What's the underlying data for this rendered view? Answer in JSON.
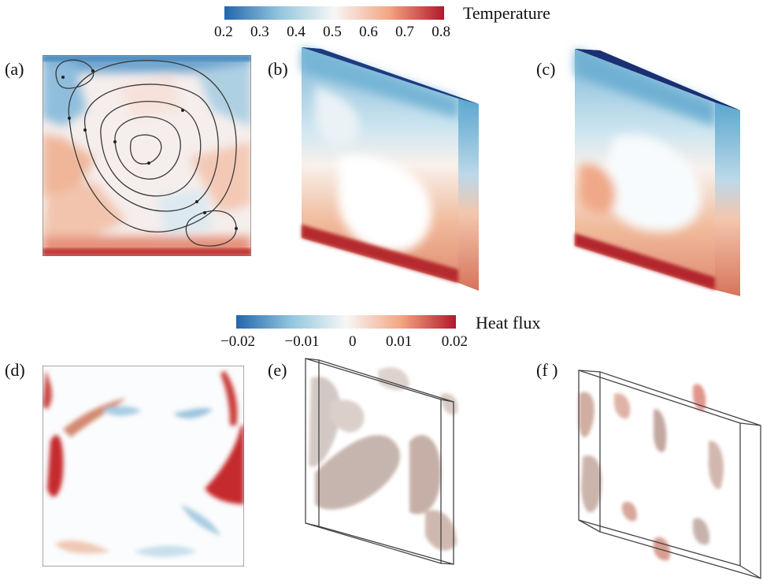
{
  "temperature_colorbar": {
    "title": "Temperature",
    "ticks": [
      "0.2",
      "0.3",
      "0.4",
      "0.5",
      "0.6",
      "0.7",
      "0.8"
    ],
    "colors": [
      "#2166ac",
      "#92c5de",
      "#f7f7f7",
      "#f4a582",
      "#b2182b"
    ]
  },
  "heatflux_colorbar": {
    "title": "Heat flux",
    "ticks": [
      "−0.02",
      "−0.01",
      "0",
      "0.01",
      "0.02"
    ],
    "colors": [
      "#2166ac",
      "#92c5de",
      "#f7f7f7",
      "#f4a582",
      "#b2182b"
    ]
  },
  "panels": {
    "a": "(a)",
    "b": "(b)",
    "c": "(c)",
    "d": "(d)",
    "e": "(e)",
    "f": "(f )"
  }
}
